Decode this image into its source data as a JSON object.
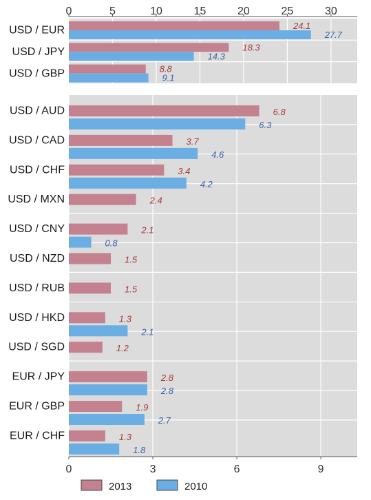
{
  "chart_data": [
    {
      "type": "bar",
      "orientation": "horizontal",
      "categories": [
        "USD / EUR",
        "USD / JPY",
        "USD / GBP"
      ],
      "series": [
        {
          "name": "2013",
          "values": [
            24.1,
            18.3,
            8.8
          ],
          "color": "#c48290"
        },
        {
          "name": "2010",
          "values": [
            27.7,
            14.3,
            9.1
          ],
          "color": "#6aaee4"
        }
      ],
      "xlim": [
        0,
        33
      ],
      "ticks": [
        0,
        5,
        10,
        15,
        20,
        25,
        30
      ],
      "axis_position": "top",
      "grid": true
    },
    {
      "type": "bar",
      "orientation": "horizontal",
      "categories": [
        "USD / AUD",
        "USD / CAD",
        "USD / CHF",
        "USD / MXN",
        "USD / CNY",
        "USD / NZD",
        "USD / RUB",
        "USD / HKD",
        "USD / SGD",
        "EUR / JPY",
        "EUR / GBP",
        "EUR / CHF"
      ],
      "series": [
        {
          "name": "2013",
          "values": [
            6.8,
            3.7,
            3.4,
            2.4,
            2.1,
            1.5,
            1.5,
            1.3,
            1.2,
            2.8,
            1.9,
            1.3
          ],
          "color": "#c48290"
        },
        {
          "name": "2010",
          "values": [
            6.3,
            4.6,
            4.2,
            null,
            0.8,
            null,
            null,
            2.1,
            null,
            2.8,
            2.7,
            1.8
          ],
          "color": "#6aaee4"
        }
      ],
      "xlim": [
        0,
        10.3
      ],
      "ticks": [
        0,
        3,
        6,
        9
      ],
      "axis_position": "bottom",
      "grid": true
    }
  ],
  "legend": {
    "placement": "bottom",
    "items": [
      {
        "label": "2013",
        "color": "#c48290"
      },
      {
        "label": "2010",
        "color": "#6aaee4"
      }
    ]
  },
  "colors": {
    "plot_background": "#dcdcdc",
    "label_2013": "#a83a3a",
    "label_2010": "#3a63a8"
  }
}
